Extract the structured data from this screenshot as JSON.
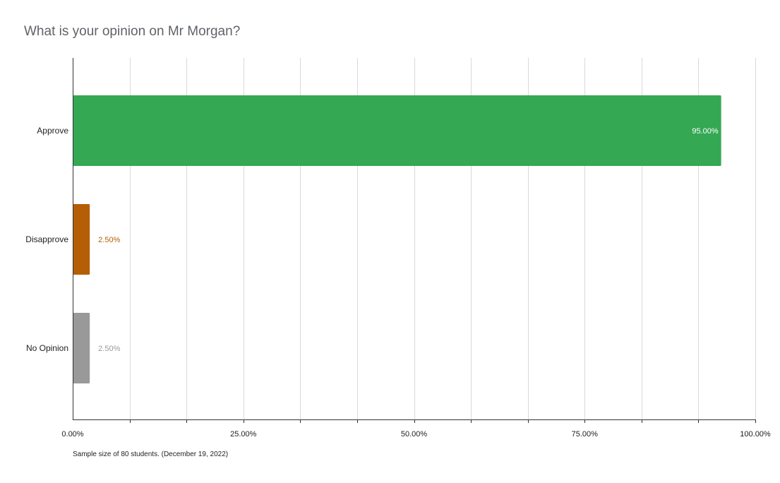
{
  "chart_data": {
    "type": "bar",
    "orientation": "horizontal",
    "title": "What is your opinion on Mr Morgan?",
    "categories": [
      "Approve",
      "Disapprove",
      "No Opinion"
    ],
    "values": [
      95.0,
      2.5,
      2.5
    ],
    "value_labels": [
      "95.00%",
      "2.50%",
      "2.50%"
    ],
    "colors": [
      "#34a853",
      "#b45f06",
      "#999999"
    ],
    "label_colors": [
      "#ffffff",
      "#b45f06",
      "#999999"
    ],
    "xlim": [
      0,
      100
    ],
    "xticks": [
      0,
      25,
      50,
      75,
      100
    ],
    "xtick_labels": [
      "0.00%",
      "25.00%",
      "50.00%",
      "75.00%",
      "100.00%"
    ],
    "minor_gridlines": true,
    "xlabel": "",
    "ylabel": "",
    "legend": "none",
    "footnote": "Sample size of 80 students. (December 19, 2022)"
  }
}
